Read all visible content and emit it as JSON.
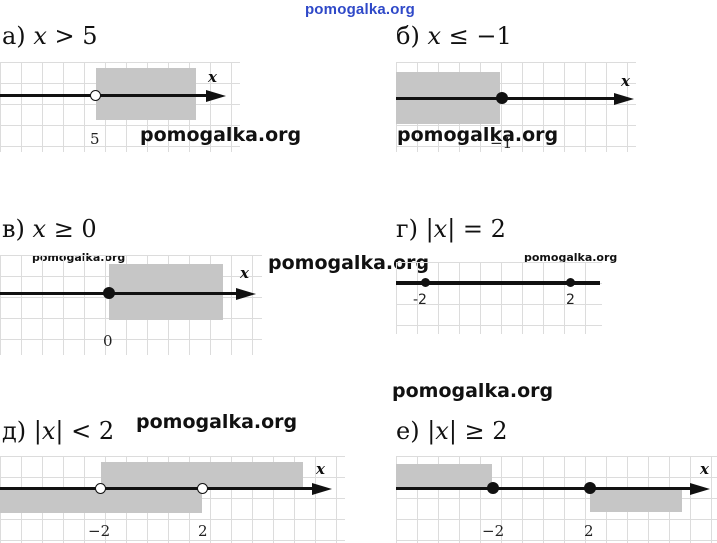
{
  "site_link": "pomogalka.org",
  "watermark": "pomogalka.org",
  "axis_name": "x",
  "tasks": {
    "a": {
      "prefix": "а) ",
      "var": "x",
      "rel": " > 5",
      "points": [
        "5"
      ]
    },
    "b": {
      "prefix": "б) ",
      "var": "x",
      "rel": " ≤ −1",
      "points": [
        "−1"
      ]
    },
    "v": {
      "prefix": "в) ",
      "var": "x",
      "rel": " ≥ 0",
      "points": [
        "0"
      ]
    },
    "g": {
      "prefix": "г) |",
      "var": "x",
      "rel": "| = 2",
      "points": [
        "-2",
        "2"
      ]
    },
    "d": {
      "prefix": "д) |",
      "var": "x",
      "rel": "| < 2",
      "points": [
        "−2",
        "2"
      ]
    },
    "e": {
      "prefix": "е) |",
      "var": "x",
      "rel": "| ≥ 2",
      "points": [
        "−2",
        "2"
      ]
    }
  }
}
